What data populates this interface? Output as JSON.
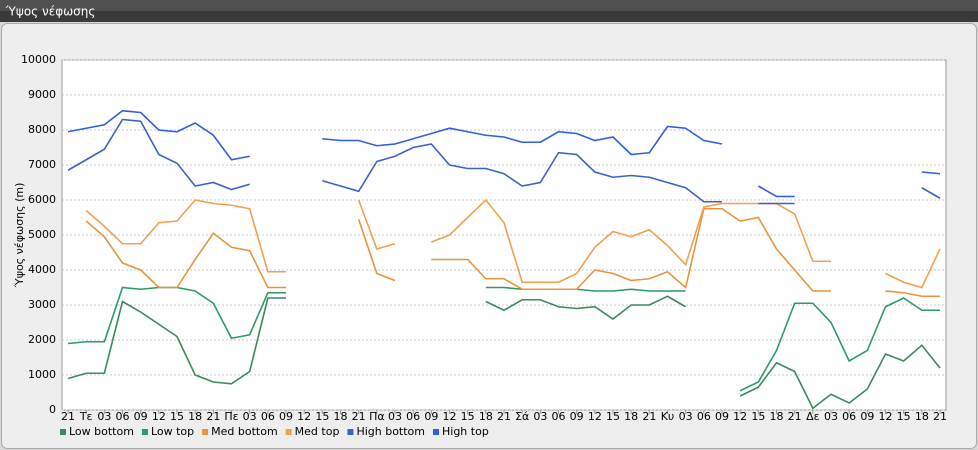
{
  "chart_data": {
    "type": "line",
    "title": "Ύψος νέφωσης",
    "y_label": "Ύψος νέφωσης (m)",
    "categories": [
      "21",
      "Τε",
      "03",
      "06",
      "09",
      "12",
      "15",
      "18",
      "21",
      "Πε",
      "03",
      "06",
      "09",
      "12",
      "15",
      "18",
      "21",
      "Πα",
      "03",
      "06",
      "09",
      "12",
      "15",
      "18",
      "21",
      "Σά",
      "03",
      "06",
      "09",
      "12",
      "15",
      "18",
      "21",
      "Κυ",
      "03",
      "06",
      "09",
      "12",
      "15",
      "18",
      "21",
      "Δε",
      "03",
      "06",
      "09",
      "12",
      "15",
      "18",
      "21"
    ],
    "ylim": [
      0,
      10000
    ],
    "yticks": [
      0,
      1000,
      2000,
      3000,
      4000,
      5000,
      6000,
      7000,
      8000,
      9000,
      10000
    ],
    "grid": true,
    "series": [
      {
        "name": "Low bottom",
        "color": "#3a8a5c",
        "values": [
          900,
          1050,
          1050,
          3100,
          2800,
          2450,
          2100,
          1000,
          800,
          750,
          1100,
          3200,
          3200,
          null,
          null,
          null,
          null,
          null,
          null,
          null,
          null,
          null,
          null,
          3100,
          2850,
          3150,
          3150,
          2950,
          2900,
          2950,
          2600,
          3000,
          3000,
          3250,
          2950,
          null,
          null,
          400,
          650,
          1350,
          1100,
          50,
          450,
          200,
          600,
          1600,
          1400,
          1850,
          1200
        ]
      },
      {
        "name": "Low top",
        "color": "#2e9a66",
        "values": [
          1900,
          1950,
          1950,
          3500,
          3450,
          3500,
          3500,
          3400,
          3050,
          2050,
          2150,
          3350,
          3350,
          null,
          null,
          null,
          null,
          null,
          null,
          null,
          null,
          null,
          null,
          3500,
          3500,
          3450,
          3450,
          3450,
          3450,
          3400,
          3400,
          3450,
          3400,
          3400,
          3400,
          null,
          null,
          550,
          800,
          1700,
          3050,
          3050,
          2500,
          1400,
          1700,
          2950,
          3200,
          2850,
          2850
        ]
      },
      {
        "name": "Med bottom",
        "color": "#e8943e",
        "values": [
          null,
          5400,
          4950,
          4200,
          4000,
          3500,
          3500,
          4300,
          5050,
          4650,
          4550,
          3500,
          3500,
          null,
          null,
          null,
          5450,
          3900,
          3700,
          null,
          4300,
          4300,
          4300,
          3750,
          3750,
          3450,
          3450,
          3450,
          3450,
          4000,
          3900,
          3700,
          3750,
          3950,
          3500,
          5750,
          5750,
          5400,
          5500,
          4600,
          4000,
          3400,
          3400,
          null,
          null,
          3400,
          3350,
          3250,
          3250
        ]
      },
      {
        "name": "Med top",
        "color": "#f0a050",
        "values": [
          null,
          5700,
          5250,
          4750,
          4750,
          5350,
          5400,
          6000,
          5900,
          5850,
          5750,
          3950,
          3950,
          null,
          null,
          null,
          6000,
          4600,
          4750,
          null,
          4800,
          5000,
          5500,
          6000,
          5350,
          3650,
          3650,
          3650,
          3900,
          4650,
          5100,
          4950,
          5150,
          4700,
          4150,
          5800,
          5900,
          5900,
          5900,
          5900,
          5600,
          4250,
          4250,
          null,
          null,
          3900,
          3650,
          3500,
          4600
        ]
      },
      {
        "name": "High bottom",
        "color": "#3a62c8",
        "values": [
          6850,
          7150,
          7450,
          8300,
          8250,
          7300,
          7050,
          6400,
          6500,
          6300,
          6450,
          null,
          null,
          null,
          6550,
          6400,
          6250,
          7100,
          7250,
          7500,
          7600,
          7000,
          6900,
          6900,
          6750,
          6400,
          6500,
          7350,
          7300,
          6800,
          6650,
          6700,
          6650,
          6500,
          6350,
          5950,
          5950,
          null,
          5900,
          5900,
          5900,
          null,
          null,
          null,
          null,
          null,
          null,
          6350,
          6050
        ]
      },
      {
        "name": "High top",
        "color": "#2f5ee0",
        "values": [
          7950,
          8050,
          8150,
          8550,
          8500,
          8000,
          7950,
          8200,
          7850,
          7150,
          7250,
          null,
          null,
          null,
          7750,
          7700,
          7700,
          7550,
          7600,
          7750,
          7900,
          8050,
          7950,
          7850,
          7800,
          7650,
          7650,
          7950,
          7900,
          7700,
          7800,
          7300,
          7350,
          8100,
          8050,
          7700,
          7600,
          null,
          6400,
          6100,
          6100,
          null,
          null,
          null,
          null,
          null,
          null,
          6800,
          6750
        ]
      }
    ]
  }
}
